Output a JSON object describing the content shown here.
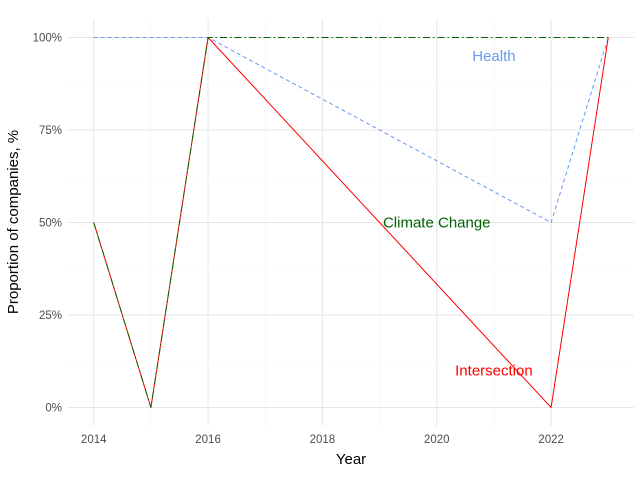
{
  "chart_data": {
    "type": "line",
    "xlabel": "Year",
    "ylabel": "Proportion of companies, %",
    "x": [
      2014,
      2015,
      2016,
      2022,
      2023
    ],
    "xlim": [
      2013.55,
      2023.45
    ],
    "ylim": [
      -0.05,
      1.05
    ],
    "x_ticks": [
      2014,
      2016,
      2018,
      2020,
      2022
    ],
    "y_ticks": [
      0,
      0.25,
      0.5,
      0.75,
      1.0
    ],
    "y_tick_labels": [
      "0%",
      "25%",
      "50%",
      "75%",
      "100%"
    ],
    "grid": true,
    "legend": "none",
    "series": [
      {
        "name": "Health",
        "color": "#6699ee",
        "dash": "dashed",
        "values": [
          1.0,
          1.0,
          1.0,
          0.5,
          1.0
        ]
      },
      {
        "name": "Intersection",
        "color": "#ff0000",
        "dash": "solid",
        "values": [
          0.5,
          0.0,
          1.0,
          0.0,
          1.0
        ]
      },
      {
        "name": "Climate Change",
        "color": "#006400",
        "dash": "dashdot",
        "values": [
          0.5,
          0.0,
          1.0,
          1.0,
          1.0
        ]
      }
    ],
    "annotations": [
      {
        "text": "Health",
        "color": "#6699ee",
        "x": 2021.0,
        "y": 0.95
      },
      {
        "text": "Climate Change",
        "color": "#006400",
        "x": 2020.0,
        "y": 0.5
      },
      {
        "text": "Intersection",
        "color": "#ff0000",
        "x": 2021.0,
        "y": 0.1
      }
    ]
  }
}
